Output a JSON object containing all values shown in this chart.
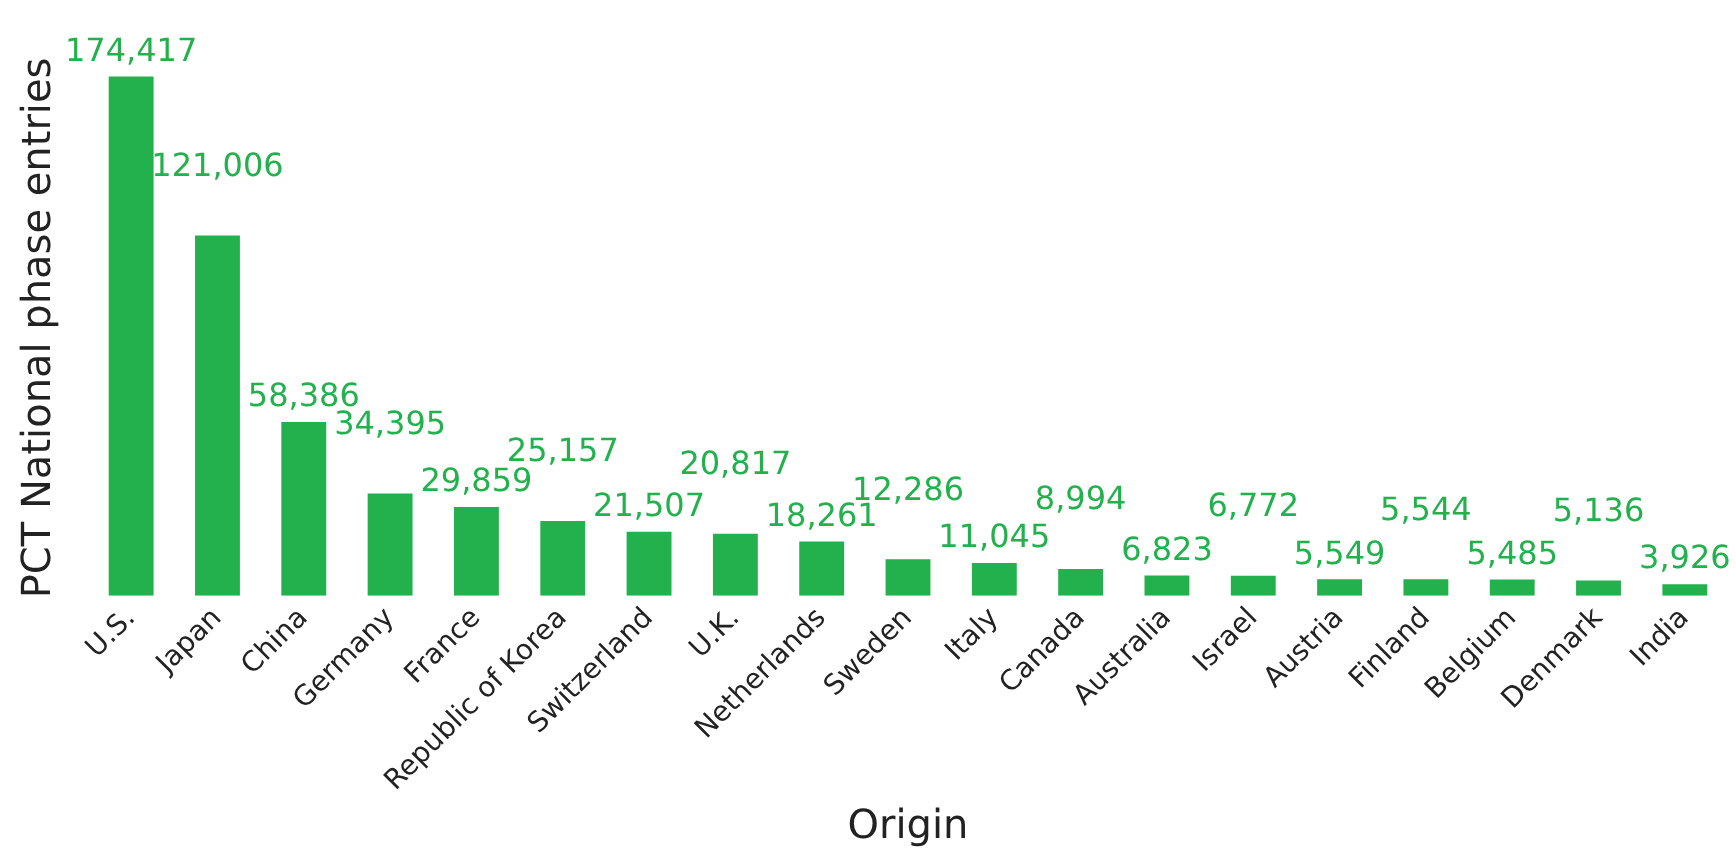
{
  "chart_data": {
    "type": "bar",
    "xlabel": "Origin",
    "ylabel": "PCT National phase entries",
    "categories": [
      "U.S.",
      "Japan",
      "China",
      "Germany",
      "France",
      "Republic of Korea",
      "Switzerland",
      "U.K.",
      "Netherlands",
      "Sweden",
      "Italy",
      "Canada",
      "Australia",
      "Israel",
      "Austria",
      "Finland",
      "Belgium",
      "Denmark",
      "India"
    ],
    "values": [
      174417,
      121006,
      58386,
      34395,
      29859,
      25157,
      21507,
      20817,
      18261,
      12286,
      11045,
      8994,
      6823,
      6772,
      5549,
      5544,
      5485,
      5136,
      3926
    ],
    "value_labels": [
      "174,417",
      "121,006",
      "58,386",
      "34,395",
      "29,859",
      "25,157",
      "21,507",
      "20,817",
      "18,261",
      "12,286",
      "11,045",
      "8,994",
      "6,823",
      "6,772",
      "5,549",
      "5,544",
      "5,485",
      "5,136",
      "3,926"
    ],
    "color": "#22b14c",
    "grid": false,
    "legend": false,
    "tick_labels": "x"
  }
}
